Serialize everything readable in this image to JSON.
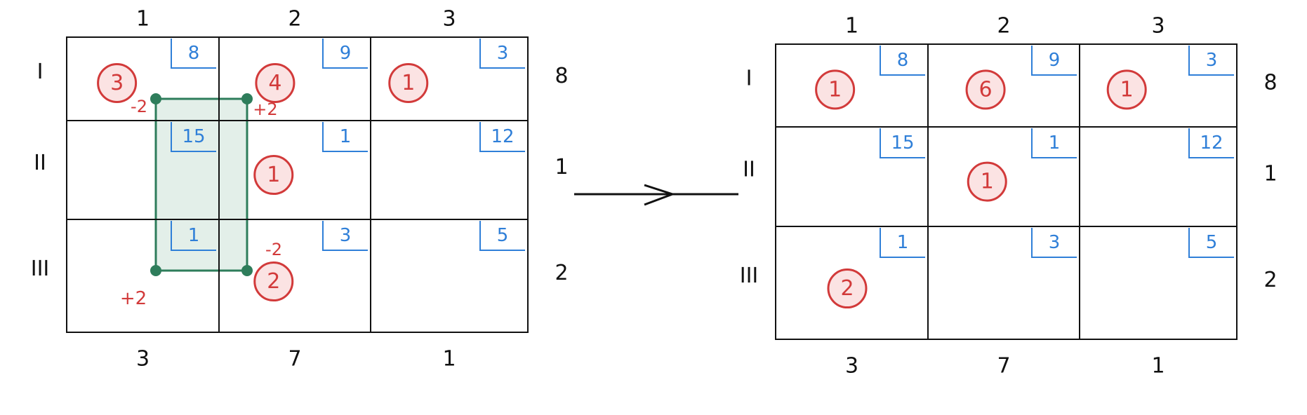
{
  "colors": {
    "ink": "#111111",
    "cost": "#2f7fd8",
    "alloc": "#d23a3a",
    "alloc_fill": "#fbe3e3",
    "cycle": "#2e7d5b",
    "cycle_fill": "#e3efe9"
  },
  "left_table": {
    "col_headers": [
      "1",
      "2",
      "3"
    ],
    "row_headers": [
      "I",
      "II",
      "III"
    ],
    "supplies": [
      "8",
      "1",
      "2"
    ],
    "demands": [
      "3",
      "7",
      "1"
    ],
    "costs": [
      [
        "8",
        "9",
        "3"
      ],
      [
        "15",
        "1",
        "12"
      ],
      [
        "1",
        "3",
        "5"
      ]
    ],
    "allocations": [
      [
        "3",
        "4",
        "1"
      ],
      [
        "",
        "1",
        ""
      ],
      [
        "",
        "2",
        ""
      ]
    ],
    "cycle_signs": [
      "-2",
      "+2",
      "-2",
      "+2"
    ]
  },
  "arrow_icon": "right-arrow",
  "right_table": {
    "col_headers": [
      "1",
      "2",
      "3"
    ],
    "row_headers": [
      "I",
      "II",
      "III"
    ],
    "supplies": [
      "8",
      "1",
      "2"
    ],
    "demands": [
      "3",
      "7",
      "1"
    ],
    "costs": [
      [
        "8",
        "9",
        "3"
      ],
      [
        "15",
        "1",
        "12"
      ],
      [
        "1",
        "3",
        "5"
      ]
    ],
    "allocations": [
      [
        "1",
        "6",
        "1"
      ],
      [
        "",
        "1",
        ""
      ],
      [
        "2",
        "",
        ""
      ]
    ]
  }
}
